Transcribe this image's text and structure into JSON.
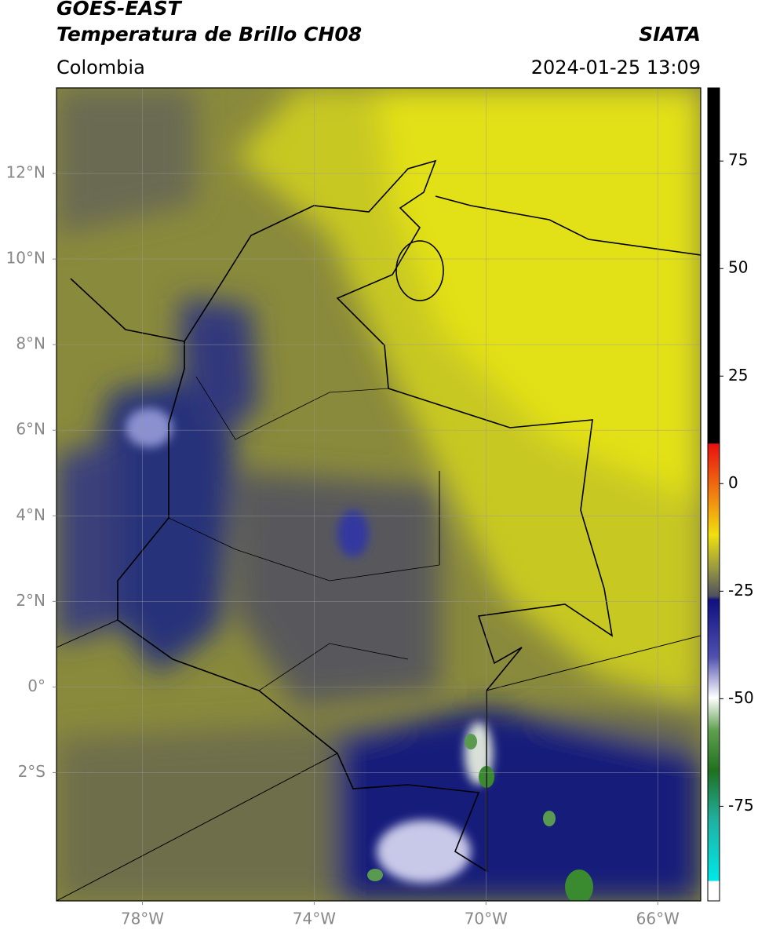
{
  "header": {
    "title": "GOES-EAST",
    "subtitle": "Temperatura de Brillo CH08",
    "source": "SIATA",
    "region": "Colombia",
    "datetime": "2024-01-25 13:09"
  },
  "map": {
    "xlim": [
      -80,
      -65
    ],
    "ylim": [
      -5,
      14
    ],
    "xticks": [
      {
        "value": -78,
        "label": "78°W"
      },
      {
        "value": -74,
        "label": "74°W"
      },
      {
        "value": -70,
        "label": "70°W"
      },
      {
        "value": -66,
        "label": "66°W"
      }
    ],
    "yticks": [
      {
        "value": 12,
        "label": "12°N"
      },
      {
        "value": 10,
        "label": "10°N"
      },
      {
        "value": 8,
        "label": "8°N"
      },
      {
        "value": 6,
        "label": "6°N"
      },
      {
        "value": 4,
        "label": "4°N"
      },
      {
        "value": 2,
        "label": "2°N"
      },
      {
        "value": 0,
        "label": "0°"
      },
      {
        "value": -2,
        "label": "2°S"
      }
    ],
    "grid": true
  },
  "colorbar": {
    "lim": [
      -97,
      92
    ],
    "ticks": [
      75,
      50,
      25,
      0,
      -25,
      -50,
      -75
    ]
  }
}
